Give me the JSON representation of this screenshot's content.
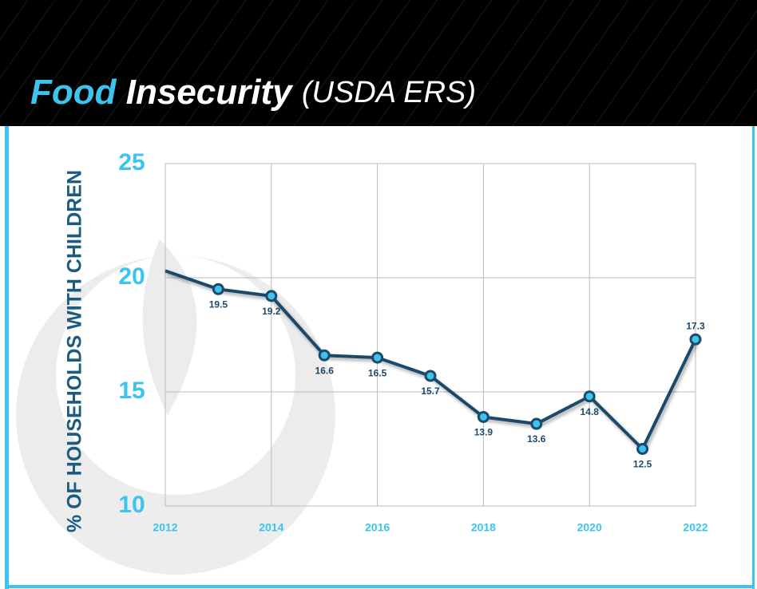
{
  "chart_data": {
    "type": "line",
    "title": {
      "highlight": "Food",
      "main": "Insecurity",
      "source": "(USDA ERS)"
    },
    "y_label": "% OF HOUSEHOLDS WITH CHILDREN",
    "x": [
      2012,
      2013,
      2014,
      2015,
      2016,
      2017,
      2018,
      2019,
      2020,
      2021,
      2022
    ],
    "series": [
      {
        "name": "Food insecurity",
        "color": "#1d4a6b",
        "marker_color": "#3cc3ee",
        "values": [
          20.3,
          19.5,
          19.2,
          16.6,
          16.5,
          15.7,
          13.9,
          13.6,
          14.8,
          12.5,
          17.3
        ],
        "value_labels": [
          null,
          "19.5",
          "19.2",
          "16.6",
          "16.5",
          "15.7",
          "13.9",
          "13.6",
          "14.8",
          "12.5",
          "17.3"
        ]
      }
    ],
    "xlim": [
      2012,
      2022
    ],
    "xticks": [
      2012,
      2014,
      2016,
      2018,
      2020,
      2022
    ],
    "ylim": [
      10,
      25
    ],
    "yticks": [
      10,
      15,
      20,
      25
    ],
    "grid": true
  }
}
